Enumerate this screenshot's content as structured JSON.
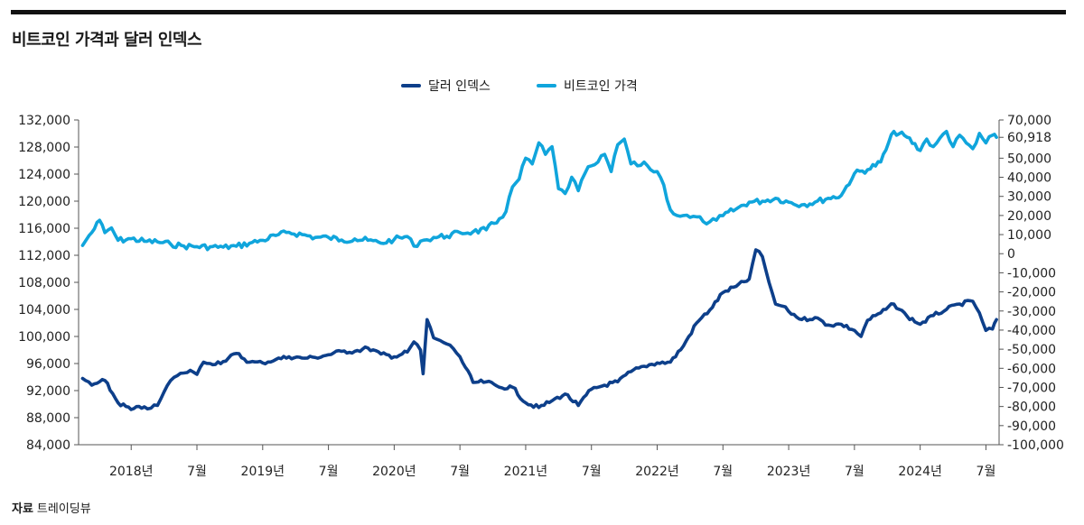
{
  "title": "비트코인 가격과 달러 인덱스",
  "source": {
    "label": "자료",
    "text": "트레이딩뷰"
  },
  "chart_data": {
    "type": "line",
    "title": "비트코인 가격과 달러 인덱스",
    "legend": [
      {
        "name": "달러 인덱스",
        "color": "#0d3f8a"
      },
      {
        "name": "비트코인 가격",
        "color": "#10a5dc"
      }
    ],
    "x_tick_labels": [
      "2018년",
      "7월",
      "2019년",
      "7월",
      "2020년",
      "7월",
      "2021년",
      "7월",
      "2022년",
      "7월",
      "2023년",
      "7월",
      "2024년",
      "7월"
    ],
    "x_range": [
      2017.6,
      2024.6
    ],
    "y_left": {
      "ticks": [
        "132,000",
        "128,000",
        "124,000",
        "120,000",
        "116,000",
        "112,000",
        "108,000",
        "104,000",
        "100,000",
        "96,000",
        "92,000",
        "88,000",
        "84,000"
      ],
      "range": [
        84000,
        132000
      ]
    },
    "y_right": {
      "ticks": [
        "70,000",
        "60,918",
        "50,000",
        "40,000",
        "30,000",
        "20,000",
        "10,000",
        "0",
        "-10,000",
        "-20,000",
        "-30,000",
        "-40,000",
        "-50,000",
        "-60,000",
        "-70,000",
        "-80,000",
        "-90,000",
        "-100,000"
      ],
      "range": [
        -100000,
        70000
      ]
    },
    "series": [
      {
        "name": "달러 인덱스",
        "axis": "left",
        "color": "#0d3f8a",
        "x": [
          2017.63,
          2017.7,
          2017.8,
          2017.9,
          2018.0,
          2018.1,
          2018.15,
          2018.2,
          2018.25,
          2018.3,
          2018.35,
          2018.4,
          2018.45,
          2018.5,
          2018.55,
          2018.6,
          2018.7,
          2018.8,
          2018.9,
          2019.0,
          2019.1,
          2019.2,
          2019.3,
          2019.4,
          2019.5,
          2019.6,
          2019.7,
          2019.8,
          2019.9,
          2020.0,
          2020.1,
          2020.15,
          2020.2,
          2020.22,
          2020.25,
          2020.3,
          2020.35,
          2020.4,
          2020.45,
          2020.5,
          2020.6,
          2020.7,
          2020.8,
          2020.9,
          2021.0,
          2021.1,
          2021.2,
          2021.3,
          2021.4,
          2021.5,
          2021.6,
          2021.7,
          2021.8,
          2021.9,
          2022.0,
          2022.1,
          2022.2,
          2022.3,
          2022.4,
          2022.5,
          2022.6,
          2022.7,
          2022.75,
          2022.8,
          2022.85,
          2022.9,
          2022.95,
          2023.0,
          2023.1,
          2023.2,
          2023.3,
          2023.4,
          2023.5,
          2023.55,
          2023.6,
          2023.7,
          2023.8,
          2023.9,
          2024.0,
          2024.1,
          2024.2,
          2024.3,
          2024.4,
          2024.45,
          2024.5,
          2024.55,
          2024.58
        ],
        "y": [
          93800,
          92800,
          93500,
          90200,
          89200,
          89600,
          89400,
          89800,
          91800,
          93500,
          94200,
          94600,
          95000,
          94400,
          96200,
          96000,
          96300,
          97500,
          96200,
          96100,
          96600,
          97000,
          96800,
          96900,
          97300,
          97800,
          97800,
          98300,
          97400,
          97000,
          97700,
          99200,
          98000,
          94500,
          102500,
          99800,
          99400,
          98900,
          98200,
          97000,
          93200,
          93300,
          92500,
          92500,
          90200,
          89500,
          90500,
          91500,
          89800,
          92200,
          92800,
          93300,
          94800,
          95600,
          96100,
          96200,
          98600,
          102000,
          103900,
          106500,
          107400,
          108500,
          112800,
          111800,
          108000,
          104800,
          104500,
          103700,
          102500,
          102800,
          101700,
          101800,
          100900,
          100000,
          102400,
          103500,
          104800,
          103000,
          101800,
          103100,
          104000,
          104800,
          105200,
          103500,
          100900,
          101100,
          102500
        ]
      },
      {
        "name": "비트코인 가격",
        "axis": "right",
        "color": "#10a5dc",
        "x": [
          2017.63,
          2017.68,
          2017.72,
          2017.76,
          2017.8,
          2017.85,
          2017.9,
          2018.0,
          2018.1,
          2018.2,
          2018.3,
          2018.4,
          2018.5,
          2018.6,
          2018.7,
          2018.8,
          2018.9,
          2019.0,
          2019.1,
          2019.2,
          2019.3,
          2019.4,
          2019.5,
          2019.6,
          2019.7,
          2019.8,
          2019.9,
          2020.0,
          2020.1,
          2020.15,
          2020.2,
          2020.25,
          2020.3,
          2020.4,
          2020.5,
          2020.6,
          2020.7,
          2020.8,
          2020.85,
          2020.9,
          2020.95,
          2021.0,
          2021.05,
          2021.1,
          2021.15,
          2021.2,
          2021.25,
          2021.3,
          2021.35,
          2021.4,
          2021.45,
          2021.5,
          2021.55,
          2021.6,
          2021.65,
          2021.7,
          2021.75,
          2021.8,
          2021.85,
          2021.9,
          2021.95,
          2022.0,
          2022.05,
          2022.1,
          2022.15,
          2022.2,
          2022.25,
          2022.3,
          2022.35,
          2022.4,
          2022.45,
          2022.5,
          2022.6,
          2022.7,
          2022.8,
          2022.9,
          2023.0,
          2023.1,
          2023.2,
          2023.3,
          2023.4,
          2023.5,
          2023.6,
          2023.7,
          2023.8,
          2023.9,
          2024.0,
          2024.05,
          2024.1,
          2024.15,
          2024.2,
          2024.25,
          2024.3,
          2024.35,
          2024.4,
          2024.45,
          2024.5,
          2024.55,
          2024.58
        ],
        "y": [
          4300,
          9500,
          13000,
          17500,
          11000,
          13500,
          7000,
          7800,
          6500,
          6200,
          5000,
          4000,
          3700,
          3600,
          3400,
          3900,
          5500,
          7000,
          9500,
          11200,
          10000,
          8500,
          8500,
          7200,
          7700,
          7000,
          5500,
          7500,
          9000,
          4000,
          6600,
          7300,
          8500,
          9200,
          11000,
          11500,
          12500,
          18300,
          22000,
          35000,
          39000,
          50000,
          47000,
          58000,
          52000,
          56000,
          34000,
          31500,
          40000,
          33000,
          42000,
          46000,
          48000,
          52000,
          43000,
          57000,
          60000,
          47000,
          46000,
          48000,
          44000,
          43000,
          36000,
          23000,
          20000,
          20000,
          19000,
          19300,
          16800,
          16700,
          17500,
          19900,
          23400,
          27000,
          27500,
          29000,
          27000,
          25600,
          27000,
          29000,
          30500,
          42000,
          44000,
          48000,
          64000,
          61000,
          54000,
          60000,
          56000,
          60500,
          64000,
          56000,
          62000,
          58000,
          55000,
          63000,
          58000,
          62000,
          60918
        ]
      }
    ]
  }
}
